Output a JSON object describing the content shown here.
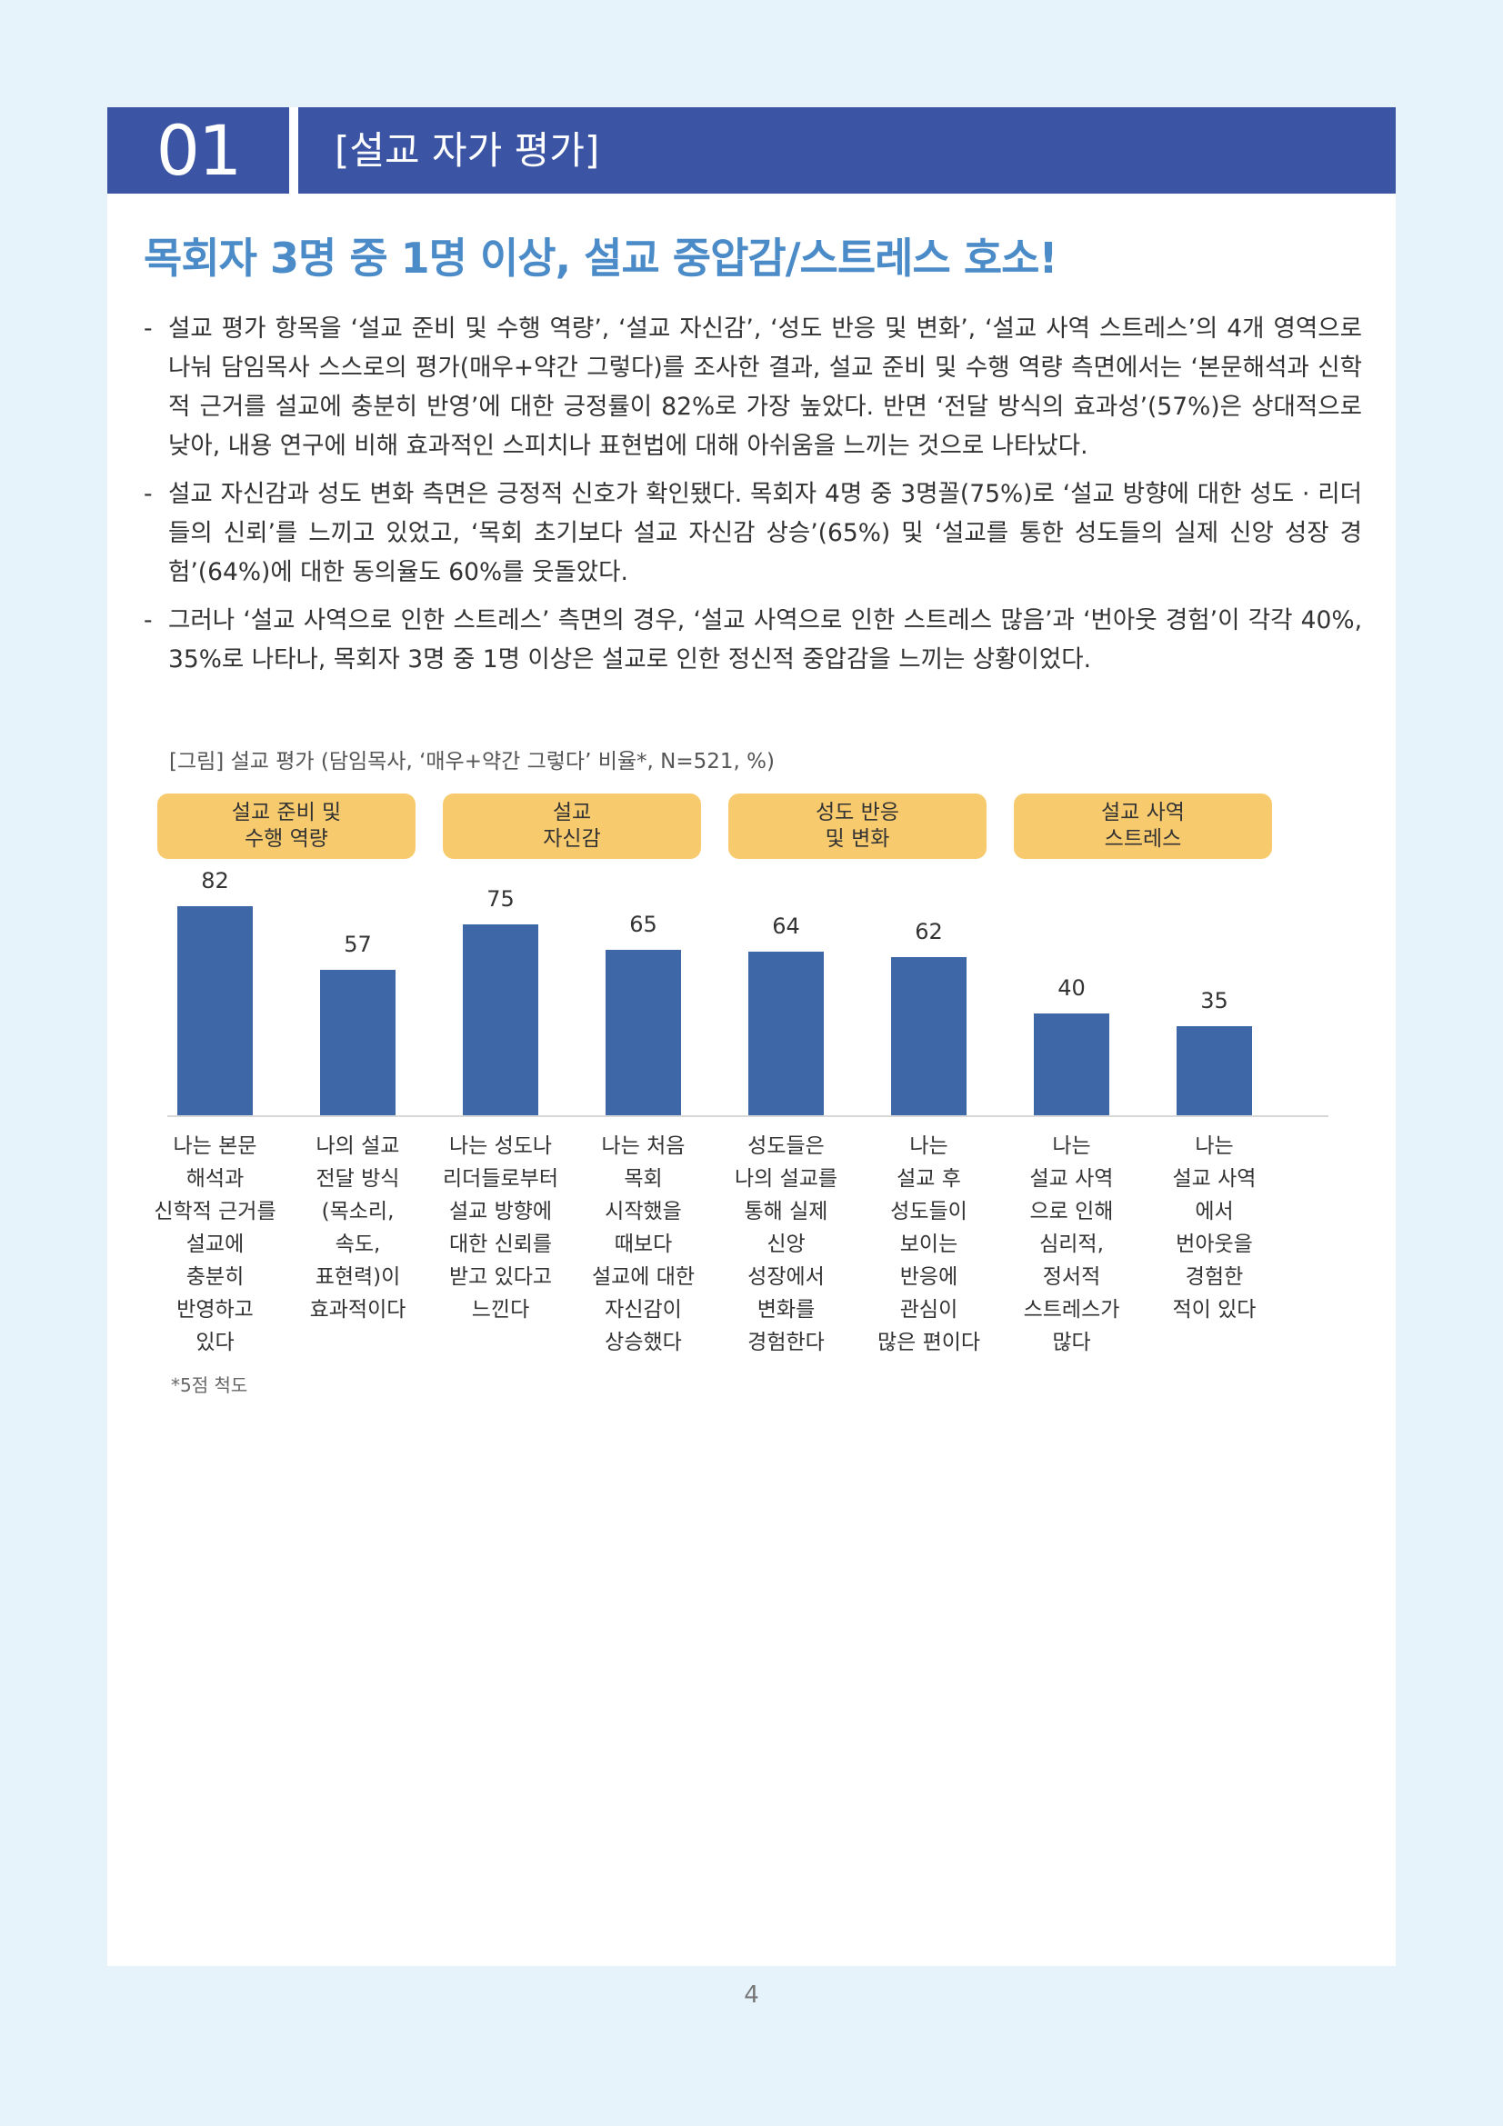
{
  "section": {
    "number": "01",
    "title": "[설교 자가 평가]"
  },
  "headline": "목회자 3명 중 1명 이상, 설교 중압감/스트레스 호소!",
  "paragraphs": [
    "설교 평가 항목을 ‘설교 준비 및 수행 역량’, ‘설교 자신감’, ‘성도 반응 및 변화’, ‘설교 사역 스트레스’의 4개 영역으로 나눠 담임목사 스스로의 평가(매우+약간 그렇다)를 조사한 결과, 설교 준비 및 수행 역량 측면에서는 ‘본문해석과 신학적 근거를 설교에 충분히 반영’에 대한 긍정률이 82%로 가장 높았다. 반면 ‘전달 방식의 효과성’(57%)은 상대적으로 낮아, 내용 연구에 비해 효과적인 스피치나 표현법에 대해 아쉬움을 느끼는 것으로 나타났다.",
    "설교 자신감과 성도 변화 측면은 긍정적 신호가 확인됐다. 목회자 4명 중 3명꼴(75%)로 ‘설교 방향에 대한 성도 · 리더들의 신뢰’를 느끼고 있었고, ‘목회 초기보다 설교 자신감 상승’(65%) 및 ‘설교를 통한 성도들의 실제 신앙 성장 경험’(64%)에 대한 동의율도 60%를 웃돌았다.",
    "그러나 ‘설교 사역으로 인한 스트레스’ 측면의 경우, ‘설교 사역으로 인한 스트레스 많음’과 ‘번아웃 경험’이 각각 40%, 35%로 나타나, 목회자 3명 중 1명 이상은 설교로 인한 정신적 중압감을 느끼는 상황이었다."
  ],
  "caption": "[그림] 설교 평가 (담임목사, ‘매우+약간 그렇다’ 비율*, N=521, %)",
  "chart_data": {
    "type": "bar",
    "groups": [
      {
        "label": "설교 준비 및\n수행 역량",
        "span": [
          0,
          1
        ]
      },
      {
        "label": "설교\n자신감",
        "span": [
          2,
          3
        ]
      },
      {
        "label": "성도 반응\n및 변화",
        "span": [
          4,
          5
        ]
      },
      {
        "label": "설교 사역\n스트레스",
        "span": [
          6,
          7
        ]
      }
    ],
    "categories": [
      "나는 본문\n해석과\n신학적 근거를\n설교에\n충분히\n반영하고\n있다",
      "나의 설교\n전달 방식\n(목소리,\n속도,\n표현력)이\n효과적이다",
      "나는 성도나\n리더들로부터\n설교 방향에\n대한 신뢰를\n받고 있다고\n느낀다",
      "나는 처음\n목회\n시작했을\n때보다\n설교에 대한\n자신감이\n상승했다",
      "성도들은\n나의 설교를\n통해 실제\n신앙\n성장에서\n변화를\n경험한다",
      "나는\n설교 후\n성도들이\n보이는\n반응에\n관심이\n많은 편이다",
      "나는\n설교 사역\n으로 인해\n심리적,\n정서적\n스트레스가\n많다",
      "나는\n설교 사역\n에서\n번아웃을\n경험한\n적이 있다"
    ],
    "values": [
      82,
      57,
      75,
      65,
      64,
      62,
      40,
      35
    ],
    "ylim": [
      0,
      100
    ],
    "bar_color": "#3e67a8",
    "group_color": "#f7ca6e"
  },
  "footnote": "*5점 척도",
  "page_number": "4"
}
